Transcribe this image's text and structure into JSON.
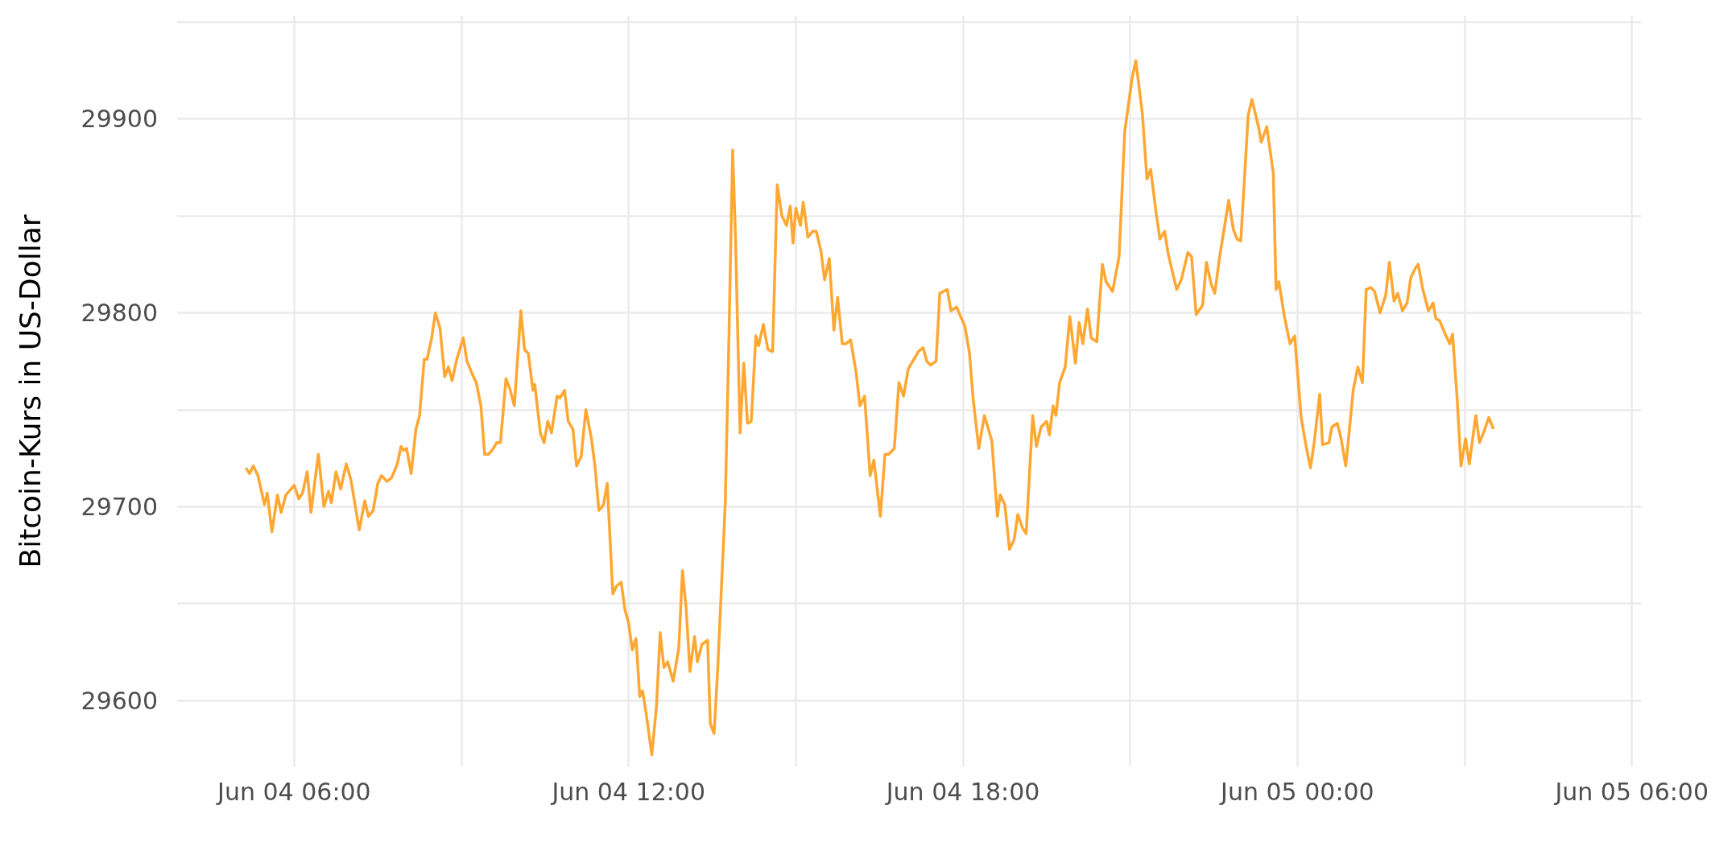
{
  "chart_data": {
    "type": "line",
    "ylabel": "Bitcoin-Kurs in US-Dollar",
    "color": "#ffa733",
    "grid": true,
    "marker": "none",
    "line_style": "solid",
    "xlim": [
      "--06-04T03:54",
      "--06-05T06:10"
    ],
    "xticks": [
      {
        "value": "--06-04T06:00",
        "label": "Jun 04 06:00"
      },
      {
        "value": "--06-04T09:00",
        "label": null
      },
      {
        "value": "--06-04T12:00",
        "label": "Jun 04 12:00"
      },
      {
        "value": "--06-04T15:00",
        "label": null
      },
      {
        "value": "--06-04T18:00",
        "label": "Jun 04 18:00"
      },
      {
        "value": "--06-04T21:00",
        "label": null
      },
      {
        "value": "--06-05T00:00",
        "label": "Jun 05 00:00"
      },
      {
        "value": "--06-05T03:00",
        "label": null
      },
      {
        "value": "--06-05T06:00",
        "label": "Jun 05 06:00"
      }
    ],
    "ylim": [
      29566,
      29953
    ],
    "yticks": [
      29600,
      {
        "value": 29650,
        "label": null
      },
      29700,
      {
        "value": 29750,
        "label": null
      },
      29800,
      {
        "value": 29850,
        "label": null
      },
      29900,
      {
        "value": 29950,
        "label": null
      }
    ],
    "x": [
      "--06-04T05:08",
      "--06-04T05:12",
      "--06-04T05:16",
      "--06-04T05:21",
      "--06-04T05:28",
      "--06-04T05:31",
      "--06-04T05:36",
      "--06-04T05:42",
      "--06-04T05:46",
      "--06-04T05:51",
      "--06-04T06:00",
      "--06-04T06:05",
      "--06-04T06:09",
      "--06-04T06:14",
      "--06-04T06:18",
      "--06-04T06:26",
      "--06-04T06:32",
      "--06-04T06:37",
      "--06-04T06:40",
      "--06-04T06:45",
      "--06-04T06:50",
      "--06-04T06:56",
      "--06-04T07:01",
      "--06-04T07:10",
      "--06-04T07:16",
      "--06-04T07:20",
      "--06-04T07:25",
      "--06-04T07:30",
      "--06-04T07:34",
      "--06-04T07:40",
      "--06-04T07:45",
      "--06-04T07:51",
      "--06-04T07:55",
      "--06-04T07:58",
      "--06-04T08:01",
      "--06-04T08:06",
      "--06-04T08:11",
      "--06-04T08:15",
      "--06-04T08:20",
      "--06-04T08:23",
      "--06-04T08:28",
      "--06-04T08:32",
      "--06-04T08:37",
      "--06-04T08:42",
      "--06-04T08:46",
      "--06-04T08:50",
      "--06-04T08:55",
      "--06-04T09:02",
      "--06-04T09:06",
      "--06-04T09:12",
      "--06-04T09:16",
      "--06-04T09:21",
      "--06-04T09:25",
      "--06-04T09:29",
      "--06-04T09:33",
      "--06-04T09:38",
      "--06-04T09:42",
      "--06-04T09:48",
      "--06-04T09:52",
      "--06-04T09:57",
      "--06-04T10:04",
      "--06-04T10:08",
      "--06-04T10:12",
      "--06-04T10:17",
      "--06-04T10:19",
      "--06-04T10:25",
      "--06-04T10:29",
      "--06-04T10:33",
      "--06-04T10:37",
      "--06-04T10:43",
      "--06-04T10:46",
      "--06-04T10:51",
      "--06-04T10:55",
      "--06-04T11:00",
      "--06-04T11:04",
      "--06-04T11:09",
      "--06-04T11:14",
      "--06-04T11:20",
      "--06-04T11:24",
      "--06-04T11:28",
      "--06-04T11:33",
      "--06-04T11:37",
      "--06-04T11:43",
      "--06-04T11:47",
      "--06-04T11:52",
      "--06-04T11:56",
      "--06-04T12:00",
      "--06-04T12:04",
      "--06-04T12:08",
      "--06-04T12:12",
      "--06-04T12:15",
      "--06-04T12:19",
      "--06-04T12:25",
      "--06-04T12:30",
      "--06-04T12:34",
      "--06-04T12:38",
      "--06-04T12:42",
      "--06-04T12:48",
      "--06-04T12:54",
      "--06-04T12:58",
      "--06-04T13:02",
      "--06-04T13:06",
      "--06-04T13:11",
      "--06-04T13:14",
      "--06-04T13:19",
      "--06-04T13:25",
      "--06-04T13:28",
      "--06-04T13:32",
      "--06-04T13:36",
      "--06-04T13:44",
      "--06-04T13:48",
      "--06-04T13:52",
      "--06-04T13:55",
      "--06-04T14:00",
      "--06-04T14:04",
      "--06-04T14:08",
      "--06-04T14:12",
      "--06-04T14:17",
      "--06-04T14:20",
      "--06-04T14:25",
      "--06-04T14:30",
      "--06-04T14:35",
      "--06-04T14:40",
      "--06-04T14:45",
      "--06-04T14:50",
      "--06-04T14:54",
      "--06-04T14:57",
      "--06-04T15:00",
      "--06-04T15:05",
      "--06-04T15:08",
      "--06-04T15:13",
      "--06-04T15:18",
      "--06-04T15:22",
      "--06-04T15:27",
      "--06-04T15:31",
      "--06-04T15:36",
      "--06-04T15:41",
      "--06-04T15:45",
      "--06-04T15:50",
      "--06-04T15:54",
      "--06-04T15:59",
      "--06-04T16:05",
      "--06-04T16:09",
      "--06-04T16:14",
      "--06-04T16:20",
      "--06-04T16:24",
      "--06-04T16:31",
      "--06-04T16:36",
      "--06-04T16:40",
      "--06-04T16:46",
      "--06-04T16:51",
      "--06-04T16:56",
      "--06-04T17:01",
      "--06-04T17:12",
      "--06-04T17:17",
      "--06-04T17:21",
      "--06-04T17:25",
      "--06-04T17:31",
      "--06-04T17:35",
      "--06-04T17:43",
      "--06-04T17:47",
      "--06-04T17:53",
      "--06-04T18:02",
      "--06-04T18:07",
      "--06-04T18:11",
      "--06-04T18:17",
      "--06-04T18:23",
      "--06-04T18:31",
      "--06-04T18:37",
      "--06-04T18:40",
      "--06-04T18:45",
      "--06-04T18:50",
      "--06-04T18:55",
      "--06-04T18:59",
      "--06-04T19:04",
      "--06-04T19:08",
      "--06-04T19:15",
      "--06-04T19:19",
      "--06-04T19:24",
      "--06-04T19:30",
      "--06-04T19:33",
      "--06-04T19:37",
      "--06-04T19:40",
      "--06-04T19:44",
      "--06-04T19:50",
      "--06-04T19:55",
      "--06-04T20:01",
      "--06-04T20:05",
      "--06-04T20:09",
      "--06-04T20:14",
      "--06-04T20:18",
      "--06-04T20:24",
      "--06-04T20:30",
      "--06-04T20:34",
      "--06-04T20:41",
      "--06-04T20:48",
      "--06-04T20:54",
      "--06-04T21:02",
      "--06-04T21:06",
      "--06-04T21:13",
      "--06-04T21:18",
      "--06-04T21:22",
      "--06-04T21:28",
      "--06-04T21:32",
      "--06-04T21:37",
      "--06-04T21:41",
      "--06-04T21:46",
      "--06-04T21:50",
      "--06-04T21:55",
      "--06-04T22:02",
      "--06-04T22:06",
      "--06-04T22:11",
      "--06-04T22:18",
      "--06-04T22:22",
      "--06-04T22:27",
      "--06-04T22:31",
      "--06-04T22:36",
      "--06-04T22:42",
      "--06-04T22:46",
      "--06-04T22:51",
      "--06-04T22:55",
      "--06-04T22:59",
      "--06-04T23:07",
      "--06-04T23:11",
      "--06-04T23:18",
      "--06-04T23:21",
      "--06-04T23:27",
      "--06-04T23:34",
      "--06-04T23:37",
      "--06-04T23:40",
      "--06-04T23:46",
      "--06-04T23:52",
      "--06-04T23:57",
      "--06-05T00:04",
      "--06-05T00:09",
      "--06-05T00:14",
      "--06-05T00:18",
      "--06-05T00:24",
      "--06-05T00:27",
      "--06-05T00:34",
      "--06-05T00:37",
      "--06-05T00:43",
      "--06-05T00:47",
      "--06-05T00:52",
      "--06-05T00:55",
      "--06-05T01:00",
      "--06-05T01:05",
      "--06-05T01:10",
      "--06-05T01:14",
      "--06-05T01:19",
      "--06-05T01:23",
      "--06-05T01:29",
      "--06-05T01:35",
      "--06-05T01:39",
      "--06-05T01:44",
      "--06-05T01:48",
      "--06-05T01:53",
      "--06-05T01:58",
      "--06-05T02:02",
      "--06-05T02:07",
      "--06-05T02:10",
      "--06-05T02:15",
      "--06-05T02:21",
      "--06-05T02:26",
      "--06-05T02:29",
      "--06-05T02:33",
      "--06-05T02:39",
      "--06-05T02:44",
      "--06-05T02:47",
      "--06-05T02:52",
      "--06-05T02:56",
      "--06-05T03:01",
      "--06-05T03:05",
      "--06-05T03:12",
      "--06-05T03:16",
      "--06-05T03:21",
      "--06-05T03:26",
      "--06-05T03:31"
    ],
    "values": [
      29720,
      29717,
      29721,
      29716,
      29701,
      29707,
      29687,
      29706,
      29697,
      29706,
      29711,
      29704,
      29707,
      29718,
      29697,
      29727,
      29700,
      29708,
      29702,
      29718,
      29709,
      29722,
      29714,
      29688,
      29703,
      29695,
      29698,
      29712,
      29716,
      29713,
      29715,
      29722,
      29731,
      29729,
      29730,
      29717,
      29740,
      29747,
      29776,
      29776,
      29787,
      29800,
      29792,
      29767,
      29772,
      29765,
      29776,
      29787,
      29775,
      29768,
      29764,
      29752,
      29727,
      29727,
      29729,
      29733,
      29733,
      29766,
      29761,
      29752,
      29801,
      29781,
      29779,
      29760,
      29763,
      29738,
      29733,
      29744,
      29738,
      29757,
      29756,
      29760,
      29744,
      29740,
      29721,
      29726,
      29750,
      29735,
      29720,
      29698,
      29701,
      29712,
      29655,
      29659,
      29661,
      29647,
      29640,
      29626,
      29632,
      29602,
      29605,
      29593,
      29572,
      29597,
      29635,
      29617,
      29620,
      29610,
      29627,
      29667,
      29647,
      29615,
      29633,
      29620,
      29629,
      29631,
      29588,
      29583,
      29617,
      29701,
      29787,
      29884,
      29840,
      29738,
      29774,
      29743,
      29744,
      29788,
      29783,
      29794,
      29781,
      29780,
      29866,
      29850,
      29845,
      29855,
      29836,
      29854,
      29845,
      29857,
      29839,
      29842,
      29842,
      29832,
      29817,
      29828,
      29791,
      29808,
      29784,
      29784,
      29786,
      29769,
      29752,
      29757,
      29716,
      29724,
      29695,
      29727,
      29727,
      29730,
      29764,
      29757,
      29771,
      29780,
      29782,
      29775,
      29773,
      29775,
      29810,
      29812,
      29801,
      29803,
      29793,
      29779,
      29755,
      29730,
      29747,
      29734,
      29695,
      29706,
      29701,
      29678,
      29683,
      29696,
      29689,
      29686,
      29747,
      29731,
      29741,
      29744,
      29737,
      29752,
      29747,
      29764,
      29772,
      29798,
      29774,
      29795,
      29784,
      29802,
      29787,
      29785,
      29825,
      29816,
      29811,
      29829,
      29893,
      29921,
      29930,
      29903,
      29869,
      29874,
      29851,
      29838,
      29842,
      29830,
      29820,
      29812,
      29817,
      29831,
      29829,
      29799,
      29804,
      29826,
      29815,
      29810,
      29828,
      29846,
      29858,
      29843,
      29838,
      29837,
      29902,
      29910,
      29896,
      29888,
      29896,
      29872,
      29812,
      29816,
      29798,
      29784,
      29788,
      29746,
      29732,
      29720,
      29733,
      29758,
      29732,
      29733,
      29741,
      29743,
      29735,
      29721,
      29735,
      29760,
      29772,
      29764,
      29812,
      29813,
      29811,
      29800,
      29809,
      29826,
      29806,
      29810,
      29801,
      29805,
      29818,
      29823,
      29825,
      29812,
      29801,
      29805,
      29797,
      29796,
      29789,
      29784,
      29789,
      29755,
      29721,
      29735,
      29722,
      29747,
      29733,
      29739,
      29746,
      29740
    ]
  }
}
